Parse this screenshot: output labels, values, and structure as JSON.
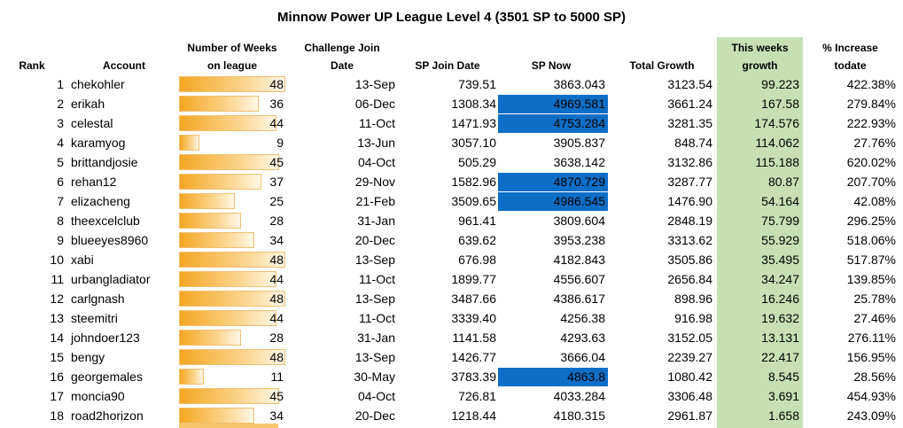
{
  "title": "Minnow Power UP League Level 4 (3501 SP to 5000 SP)",
  "headers": {
    "rank": "Rank",
    "account": "Account",
    "weeks_line1": "Number of Weeks",
    "weeks_line2": "on league",
    "join_line1": "Challenge Join",
    "join_line2": "Date",
    "sp_join": "SP Join Date",
    "sp_now": "SP Now",
    "total_growth": "Total Growth",
    "week_line1": "This weeks",
    "week_line2": "growth",
    "pct_line1": "% Increase",
    "pct_line2": "todate"
  },
  "colors": {
    "bar": "#f5a623",
    "highlight": "#0d6ec6",
    "growth_column": "#c6e0b4"
  },
  "weeks_max": 48,
  "rows": [
    {
      "rank": "1",
      "account": "chekohler",
      "weeks": 48,
      "join": "13-Sep",
      "sp_join": "739.51",
      "sp_now": "3863.043",
      "highlight": false,
      "growth": "3123.54",
      "week": "99.223",
      "pct": "422.38%"
    },
    {
      "rank": "2",
      "account": "erikah",
      "weeks": 36,
      "join": "06-Dec",
      "sp_join": "1308.34",
      "sp_now": "4969.581",
      "highlight": true,
      "growth": "3661.24",
      "week": "167.58",
      "pct": "279.84%"
    },
    {
      "rank": "3",
      "account": "celestal",
      "weeks": 44,
      "join": "11-Oct",
      "sp_join": "1471.93",
      "sp_now": "4753.284",
      "highlight": true,
      "growth": "3281.35",
      "week": "174.576",
      "pct": "222.93%"
    },
    {
      "rank": "4",
      "account": "karamyog",
      "weeks": 9,
      "join": "13-Jun",
      "sp_join": "3057.10",
      "sp_now": "3905.837",
      "highlight": false,
      "growth": "848.74",
      "week": "114.062",
      "pct": "27.76%"
    },
    {
      "rank": "5",
      "account": "brittandjosie",
      "weeks": 45,
      "join": "04-Oct",
      "sp_join": "505.29",
      "sp_now": "3638.142",
      "highlight": false,
      "growth": "3132.86",
      "week": "115.188",
      "pct": "620.02%"
    },
    {
      "rank": "6",
      "account": "rehan12",
      "weeks": 37,
      "join": "29-Nov",
      "sp_join": "1582.96",
      "sp_now": "4870.729",
      "highlight": true,
      "growth": "3287.77",
      "week": "80.87",
      "pct": "207.70%"
    },
    {
      "rank": "7",
      "account": "elizacheng",
      "weeks": 25,
      "join": "21-Feb",
      "sp_join": "3509.65",
      "sp_now": "4986.545",
      "highlight": true,
      "growth": "1476.90",
      "week": "54.164",
      "pct": "42.08%"
    },
    {
      "rank": "8",
      "account": "theexcelclub",
      "weeks": 28,
      "join": "31-Jan",
      "sp_join": "961.41",
      "sp_now": "3809.604",
      "highlight": false,
      "growth": "2848.19",
      "week": "75.799",
      "pct": "296.25%"
    },
    {
      "rank": "9",
      "account": "blueeyes8960",
      "weeks": 34,
      "join": "20-Dec",
      "sp_join": "639.62",
      "sp_now": "3953.238",
      "highlight": false,
      "growth": "3313.62",
      "week": "55.929",
      "pct": "518.06%"
    },
    {
      "rank": "10",
      "account": "xabi",
      "weeks": 48,
      "join": "13-Sep",
      "sp_join": "676.98",
      "sp_now": "4182.843",
      "highlight": false,
      "growth": "3505.86",
      "week": "35.495",
      "pct": "517.87%"
    },
    {
      "rank": "11",
      "account": "urbangladiator",
      "weeks": 44,
      "join": "11-Oct",
      "sp_join": "1899.77",
      "sp_now": "4556.607",
      "highlight": false,
      "growth": "2656.84",
      "week": "34.247",
      "pct": "139.85%"
    },
    {
      "rank": "12",
      "account": "carlgnash",
      "weeks": 48,
      "join": "13-Sep",
      "sp_join": "3487.66",
      "sp_now": "4386.617",
      "highlight": false,
      "growth": "898.96",
      "week": "16.246",
      "pct": "25.78%"
    },
    {
      "rank": "13",
      "account": "steemitri",
      "weeks": 44,
      "join": "11-Oct",
      "sp_join": "3339.40",
      "sp_now": "4256.38",
      "highlight": false,
      "growth": "916.98",
      "week": "19.632",
      "pct": "27.46%"
    },
    {
      "rank": "14",
      "account": "johndoer123",
      "weeks": 28,
      "join": "31-Jan",
      "sp_join": "1141.58",
      "sp_now": "4293.63",
      "highlight": false,
      "growth": "3152.05",
      "week": "13.131",
      "pct": "276.11%"
    },
    {
      "rank": "15",
      "account": "bengy",
      "weeks": 48,
      "join": "13-Sep",
      "sp_join": "1426.77",
      "sp_now": "3666.04",
      "highlight": false,
      "growth": "2239.27",
      "week": "22.417",
      "pct": "156.95%"
    },
    {
      "rank": "16",
      "account": "georgemales",
      "weeks": 11,
      "join": "30-May",
      "sp_join": "3783.39",
      "sp_now": "4863.8",
      "highlight": true,
      "growth": "1080.42",
      "week": "8.545",
      "pct": "28.56%"
    },
    {
      "rank": "17",
      "account": "moncia90",
      "weeks": 45,
      "join": "04-Oct",
      "sp_join": "726.81",
      "sp_now": "4033.284",
      "highlight": false,
      "growth": "3306.48",
      "week": "3.691",
      "pct": "454.93%"
    },
    {
      "rank": "18",
      "account": "road2horizon",
      "weeks": 34,
      "join": "20-Dec",
      "sp_join": "1218.44",
      "sp_now": "4180.315",
      "highlight": false,
      "growth": "2961.87",
      "week": "1.658",
      "pct": "243.09%"
    }
  ]
}
